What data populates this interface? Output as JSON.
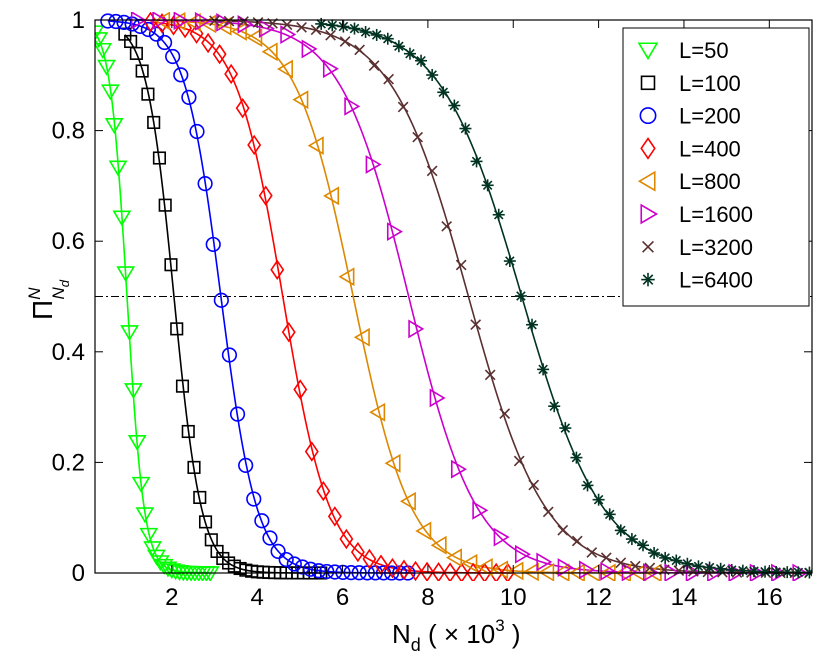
{
  "chart_data": {
    "type": "line",
    "title": "",
    "xlabel": "N",
    "xlabel_subscript": "d",
    "xlabel_suffix": " ( × 10",
    "xlabel_exponent": "3",
    "xlabel_close": " )",
    "ylabel": "Π",
    "ylabel_superscript": "N",
    "ylabel_subscript": "N",
    "ylabel_subsubscript": "d",
    "xlim": [
      0.2,
      17
    ],
    "ylim": [
      0,
      1
    ],
    "xticks": [
      "2",
      "4",
      "6",
      "8",
      "10",
      "12",
      "14",
      "16"
    ],
    "xtick_values": [
      2,
      4,
      6,
      8,
      10,
      12,
      14,
      16
    ],
    "yticks": [
      "0",
      "0.2",
      "0.4",
      "0.6",
      "0.8",
      "1"
    ],
    "ytick_values": [
      0,
      0.2,
      0.4,
      0.6,
      0.8,
      1
    ],
    "reference_line": {
      "y": 0.5,
      "style": "dash-dot"
    },
    "legend_position": "top-right",
    "series": [
      {
        "name": "L=50",
        "marker": "triangle-down",
        "color": "#00ff00",
        "x50": 0.95,
        "width": 0.2,
        "xstart": 0.2,
        "xend": 2.9,
        "step": 0.09
      },
      {
        "name": "L=100",
        "marker": "square",
        "color": "#000000",
        "x50": 2.05,
        "width": 0.32,
        "xstart": 0.9,
        "xend": 5.5,
        "step": 0.135
      },
      {
        "name": "L=200",
        "marker": "circle",
        "color": "#0000ff",
        "x50": 3.15,
        "width": 0.42,
        "xstart": 0.5,
        "xend": 7.7,
        "step": 0.19
      },
      {
        "name": "L=400",
        "marker": "diamond",
        "color": "#ff0000",
        "x50": 4.6,
        "width": 0.55,
        "xstart": 1.5,
        "xend": 10.0,
        "step": 0.27
      },
      {
        "name": "L=800",
        "marker": "triangle-left",
        "color": "#dd8800",
        "x50": 6.25,
        "width": 0.68,
        "xstart": 1.8,
        "xend": 13.5,
        "step": 0.36
      },
      {
        "name": "L=1600",
        "marker": "triangle-right",
        "color": "#cc00cc",
        "x50": 7.55,
        "width": 0.8,
        "xstart": 1.2,
        "xend": 17.0,
        "step": 0.5
      },
      {
        "name": "L=3200",
        "marker": "x",
        "color": "#5a3030",
        "x50": 8.95,
        "width": 0.9,
        "xstart": 3.0,
        "xend": 17.0,
        "step": 0.34
      },
      {
        "name": "L=6400",
        "marker": "asterisk",
        "color": "#003322",
        "x50": 10.2,
        "width": 0.95,
        "xstart": 5.5,
        "xend": 17.0,
        "step": 0.26
      }
    ]
  }
}
